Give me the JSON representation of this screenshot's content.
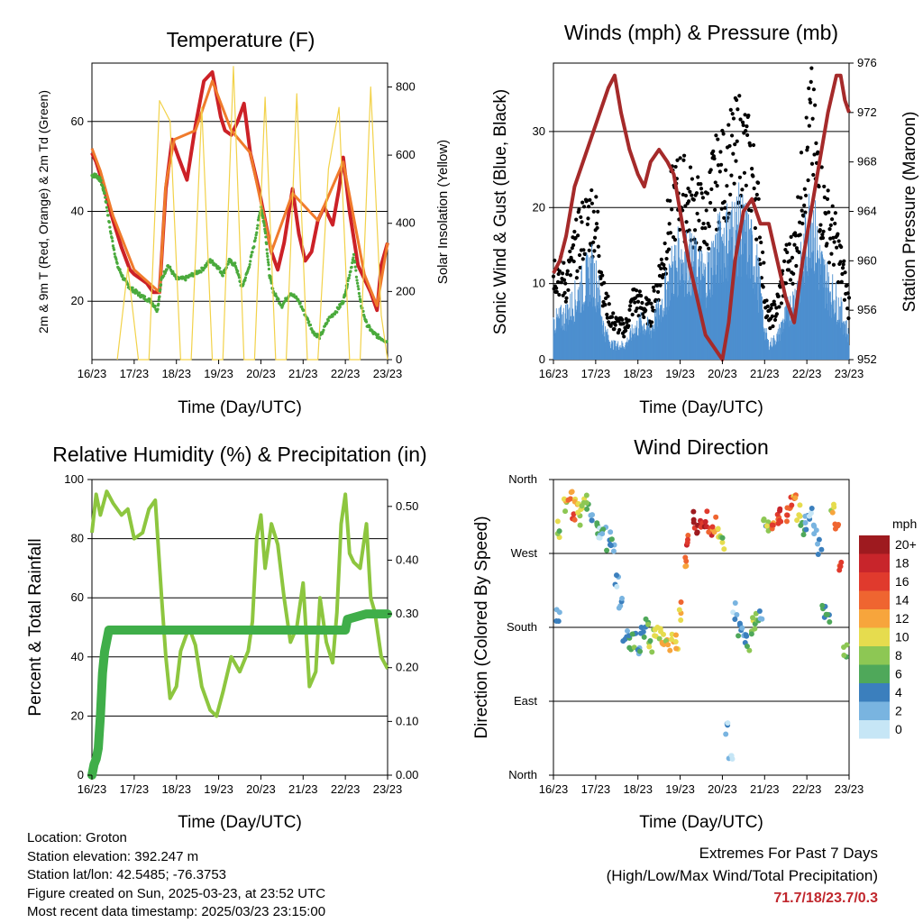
{
  "panels": {
    "temperature": {
      "title": "Temperature (F)",
      "ylabel": "2m & 9m T (Red, Orange) & 2m Td (Green)",
      "y2label": "Solar Insolation (Yellow)",
      "xlabel": "Time (Day/UTC)"
    },
    "winds": {
      "title": "Winds (mph) & Pressure (mb)",
      "ylabel": "Sonic Wind & Gust (Blue, Black)",
      "y2label": "Station Pressure (Maroon)",
      "xlabel": "Time (Day/UTC)"
    },
    "humidity": {
      "title": "Relative Humidity (%) & Precipitation (in)",
      "ylabel": "Percent & Total Rainfall",
      "xlabel": "Time (Day/UTC)"
    },
    "direction": {
      "title": "Wind Direction",
      "ylabel": "Direction (Colored By Speed)",
      "xlabel": "Time (Day/UTC)",
      "legend_title": "mph",
      "legend_labels": [
        "20+",
        "18",
        "16",
        "14",
        "12",
        "10",
        "8",
        "6",
        "4",
        "2",
        "0"
      ],
      "legend_colors": [
        "#9e1a1f",
        "#c8252b",
        "#e03a2d",
        "#ef6530",
        "#f7a53c",
        "#e6dc4e",
        "#8dc754",
        "#4fa85a",
        "#3b7fbd",
        "#79b4e0",
        "#c6e6f6"
      ]
    }
  },
  "info": {
    "location": "Location: Groton",
    "elevation": "Station elevation: 392.247 m",
    "latlon": "Station lat/lon: 42.5485; -76.3753",
    "created": "Figure created on Sun, 2025-03-23, at 23:52 UTC",
    "recent": "Most recent data timestamp: 2025/03/23 23:15:00"
  },
  "extremes": {
    "line1": "Extremes For Past 7 Days",
    "line2": "(High/Low/Max Wind/Total Precipitation)",
    "values": "71.7/18/23.7/0.3"
  },
  "chart_data": [
    {
      "type": "line",
      "title": "Temperature (F)",
      "xlabel": "Time (Day/UTC)",
      "ylabel": "2m & 9m T (Red, Orange) & 2m Td (Green)",
      "y2label": "Solar Insolation (Yellow)",
      "xticks": [
        "16/23",
        "17/23",
        "18/23",
        "19/23",
        "20/23",
        "21/23",
        "22/23",
        "23/23"
      ],
      "xlim": [
        0,
        7
      ],
      "ylim": [
        7,
        73
      ],
      "yticks": [
        20,
        40,
        60
      ],
      "y2lim": [
        0,
        870
      ],
      "y2ticks": [
        0,
        200,
        400,
        600,
        800
      ],
      "series": [
        {
          "color": "#cc2127",
          "x": [
            0,
            0.1,
            0.2,
            0.35,
            0.5,
            0.7,
            0.9,
            1.0,
            1.15,
            1.3,
            1.45,
            1.6,
            1.75,
            1.9,
            2.05,
            2.25,
            2.45,
            2.65,
            2.85,
            2.95,
            3.05,
            3.15,
            3.3,
            3.45,
            3.6,
            3.75,
            3.95,
            4.1,
            4.25,
            4.4,
            4.55,
            4.75,
            4.9,
            5.05,
            5.2,
            5.35,
            5.5,
            5.7,
            5.85,
            5.95,
            6.1,
            6.3,
            6.45,
            6.6,
            6.75,
            6.85,
            7.0
          ],
          "y": [
            53,
            51,
            48,
            43,
            38,
            32,
            27,
            26,
            25,
            24,
            22,
            22,
            45,
            56,
            52,
            47,
            59,
            69,
            71,
            66,
            61,
            58,
            57,
            60,
            64,
            53,
            45,
            38,
            31,
            27,
            33,
            45,
            35,
            29,
            31,
            38,
            41,
            37,
            45,
            52,
            40,
            28,
            25,
            22,
            18,
            28,
            33
          ]
        },
        {
          "color": "#f07b2c",
          "x": [
            0,
            0.2,
            0.5,
            1.0,
            1.6,
            1.75,
            1.95,
            2.45,
            2.85,
            3.3,
            3.75,
            4.25,
            4.75,
            5.35,
            5.95,
            6.45,
            6.75,
            7.0
          ],
          "y": [
            54,
            49,
            39,
            27,
            22,
            46,
            56,
            58,
            69,
            58,
            53,
            31,
            44,
            38,
            51,
            26,
            19,
            33
          ]
        },
        {
          "color": "#4aaa3c",
          "x": [
            0,
            0.1,
            0.2,
            0.3,
            0.45,
            0.6,
            0.75,
            0.9,
            1.05,
            1.2,
            1.4,
            1.55,
            1.65,
            1.8,
            2.0,
            2.2,
            2.4,
            2.6,
            2.8,
            2.95,
            3.1,
            3.25,
            3.4,
            3.55,
            3.7,
            3.85,
            4.0,
            4.1,
            4.2,
            4.3,
            4.5,
            4.7,
            4.9,
            5.1,
            5.25,
            5.4,
            5.6,
            5.8,
            5.95,
            6.05,
            6.2,
            6.35,
            6.5,
            6.65,
            6.8,
            7.0
          ],
          "y": [
            48,
            48,
            47,
            44,
            35,
            28,
            25,
            23,
            22,
            21,
            20,
            18,
            25,
            28,
            25,
            25,
            26,
            27,
            29,
            28,
            26,
            29,
            28,
            23,
            27,
            33,
            41,
            36,
            26,
            22,
            19,
            22,
            20,
            16,
            13,
            12,
            16,
            18,
            20,
            24,
            30,
            20,
            15,
            13,
            12,
            11
          ]
        },
        {
          "axis": "y2",
          "color": "#f2d24a",
          "x": [
            0.6,
            0.85,
            1.1,
            1.35,
            1.6,
            1.85,
            2.1,
            2.35,
            2.6,
            2.85,
            3.1,
            3.35,
            3.6,
            3.85,
            4.1,
            4.35,
            4.6,
            4.85,
            5.1,
            5.35,
            5.6,
            5.85,
            6.1,
            6.35,
            6.6,
            6.85,
            7.0
          ],
          "y": [
            0,
            270,
            0,
            0,
            760,
            700,
            0,
            0,
            740,
            0,
            0,
            860,
            0,
            0,
            770,
            0,
            0,
            780,
            0,
            0,
            560,
            740,
            0,
            0,
            800,
            130,
            0
          ]
        }
      ]
    },
    {
      "type": "scatter",
      "title": "Winds (mph) & Pressure (mb)",
      "xlabel": "Time (Day/UTC)",
      "ylabel": "Sonic Wind & Gust (Blue, Black)",
      "y2label": "Station Pressure (Maroon)",
      "xticks": [
        "16/23",
        "17/23",
        "18/23",
        "19/23",
        "20/23",
        "21/23",
        "22/23",
        "23/23"
      ],
      "xlim": [
        0,
        7
      ],
      "ylim": [
        0,
        39
      ],
      "yticks": [
        0,
        10,
        20,
        30
      ],
      "y2lim": [
        952,
        976
      ],
      "y2ticks": [
        952,
        956,
        960,
        964,
        968,
        972,
        976
      ],
      "series": [
        {
          "color": "#000000",
          "x": [
            0,
            0.3,
            0.5,
            0.7,
            0.9,
            1.05,
            1.2,
            1.4,
            1.7,
            1.9,
            2.1,
            2.3,
            2.6,
            2.8,
            3.0,
            3.3,
            3.6,
            3.8,
            4.0,
            4.2,
            4.4,
            4.6,
            4.8,
            5.0,
            5.1,
            5.3,
            5.5,
            5.7,
            5.9,
            6.1,
            6.3,
            6.5,
            6.7,
            6.9,
            7.0
          ],
          "y": [
            12,
            10,
            14,
            17,
            19,
            17,
            8,
            5,
            4,
            8,
            7,
            6,
            13,
            20,
            22,
            20,
            18,
            23,
            24,
            26,
            28,
            26,
            22,
            9,
            5,
            7,
            12,
            14,
            23,
            31,
            22,
            18,
            15,
            10,
            7
          ]
        },
        {
          "color": "#4d8fcf",
          "x": [
            0,
            0.3,
            0.5,
            0.7,
            0.9,
            1.05,
            1.2,
            1.4,
            1.7,
            1.9,
            2.1,
            2.3,
            2.6,
            2.8,
            3.0,
            3.3,
            3.6,
            3.8,
            4.0,
            4.2,
            4.4,
            4.6,
            4.8,
            5.0,
            5.1,
            5.3,
            5.5,
            5.7,
            5.9,
            6.1,
            6.3,
            6.5,
            6.7,
            6.9,
            7.0
          ],
          "y": [
            5,
            6,
            8,
            10,
            12,
            10,
            4,
            2,
            2,
            4,
            5,
            4,
            8,
            12,
            14,
            13,
            11,
            14,
            16,
            17,
            18,
            16,
            13,
            4,
            2,
            3,
            6,
            8,
            13,
            20,
            13,
            10,
            8,
            5,
            3
          ]
        },
        {
          "axis": "y2",
          "color": "#a52a2a",
          "x": [
            0,
            0.15,
            0.3,
            0.5,
            0.7,
            0.9,
            1.1,
            1.3,
            1.45,
            1.6,
            1.8,
            2.0,
            2.15,
            2.3,
            2.5,
            2.7,
            2.85,
            3.0,
            3.2,
            3.4,
            3.6,
            3.8,
            4.0,
            4.15,
            4.3,
            4.5,
            4.7,
            4.9,
            5.1,
            5.3,
            5.5,
            5.7,
            5.9,
            6.1,
            6.3,
            6.5,
            6.7,
            6.8,
            6.9,
            7.0
          ],
          "y": [
            959,
            960,
            962,
            966,
            968,
            970,
            972,
            974,
            975,
            972,
            969,
            967,
            966,
            968,
            969,
            968,
            967,
            964,
            960,
            957,
            954,
            953,
            952,
            955,
            960,
            964,
            965,
            963,
            963,
            960,
            957,
            955,
            960,
            964,
            968,
            972,
            975,
            975,
            973,
            972
          ]
        }
      ]
    },
    {
      "type": "line",
      "title": "Relative Humidity (%) & Precipitation (in)",
      "xlabel": "Time (Day/UTC)",
      "ylabel": "Percent & Total Rainfall",
      "xticks": [
        "16/23",
        "17/23",
        "18/23",
        "19/23",
        "20/23",
        "21/23",
        "22/23",
        "23/23"
      ],
      "xlim": [
        0,
        7
      ],
      "ylim": [
        0,
        100
      ],
      "yticks": [
        0,
        20,
        40,
        60,
        80,
        100
      ],
      "y2lim": [
        0,
        0.55
      ],
      "y2ticks": [
        0.0,
        0.1,
        0.2,
        0.3,
        0.4,
        0.5
      ],
      "series": [
        {
          "color": "#8dc63f",
          "x": [
            0,
            0.1,
            0.2,
            0.35,
            0.5,
            0.7,
            0.85,
            1.0,
            1.2,
            1.35,
            1.5,
            1.65,
            1.75,
            1.85,
            2.0,
            2.1,
            2.3,
            2.45,
            2.6,
            2.8,
            2.95,
            3.1,
            3.3,
            3.5,
            3.7,
            3.8,
            3.9,
            4.0,
            4.1,
            4.25,
            4.4,
            4.55,
            4.7,
            4.85,
            5.0,
            5.15,
            5.3,
            5.4,
            5.55,
            5.7,
            5.8,
            5.9,
            6.0,
            6.1,
            6.2,
            6.35,
            6.5,
            6.6,
            6.7,
            6.85,
            7.0
          ],
          "y": [
            82,
            95,
            88,
            96,
            92,
            88,
            90,
            80,
            82,
            90,
            93,
            60,
            40,
            26,
            30,
            42,
            50,
            44,
            30,
            22,
            20,
            28,
            40,
            35,
            42,
            52,
            80,
            88,
            70,
            85,
            78,
            60,
            45,
            50,
            65,
            30,
            35,
            60,
            45,
            38,
            55,
            85,
            95,
            75,
            72,
            70,
            85,
            60,
            55,
            40,
            36
          ]
        },
        {
          "axis": "y2",
          "color": "#3fae49",
          "x": [
            0,
            0.05,
            0.1,
            0.15,
            0.2,
            0.25,
            0.3,
            0.4,
            6.0,
            6.05,
            6.5,
            7.0
          ],
          "y": [
            0.0,
            0.02,
            0.03,
            0.05,
            0.11,
            0.19,
            0.23,
            0.27,
            0.27,
            0.29,
            0.3,
            0.3
          ]
        }
      ]
    },
    {
      "type": "scatter",
      "title": "Wind Direction",
      "xlabel": "Time (Day/UTC)",
      "ylabel": "Direction (Colored By Speed)",
      "xticks": [
        "16/23",
        "17/23",
        "18/23",
        "19/23",
        "20/23",
        "21/23",
        "22/23",
        "23/23"
      ],
      "xlim": [
        0,
        7
      ],
      "ylim": [
        0,
        360
      ],
      "yticks": [
        "North",
        "East",
        "South",
        "West",
        "North"
      ],
      "legend": {
        "title": "mph",
        "labels": [
          "20+",
          "18",
          "16",
          "14",
          "12",
          "10",
          "8",
          "6",
          "4",
          "2",
          "0"
        ]
      },
      "series": [
        {
          "x": [
            0.1,
            0.15,
            0.3,
            0.4,
            0.5,
            0.55,
            0.6,
            0.7,
            0.8,
            0.9,
            1.0,
            1.1,
            1.2,
            1.3,
            1.4,
            1.5,
            1.6,
            1.7,
            1.8,
            1.9,
            2.0,
            2.1,
            2.2,
            2.3,
            2.4,
            2.5,
            2.6,
            2.7,
            2.8,
            2.9,
            3.0,
            3.1,
            3.2,
            3.3,
            3.4,
            3.5,
            3.6,
            3.7,
            3.8,
            3.9,
            4.0,
            4.1,
            4.2,
            4.3,
            4.4,
            4.5,
            4.6,
            4.7,
            4.8,
            4.9,
            5.0,
            5.1,
            5.2,
            5.3,
            5.4,
            5.5,
            5.6,
            5.7,
            5.8,
            5.9,
            6.0,
            6.1,
            6.2,
            6.3,
            6.4,
            6.5,
            6.6,
            6.7,
            6.8,
            6.9
          ],
          "y": [
            190,
            300,
            330,
            340,
            320,
            330,
            315,
            325,
            330,
            320,
            305,
            300,
            290,
            285,
            280,
            240,
            210,
            175,
            160,
            165,
            155,
            170,
            180,
            160,
            175,
            170,
            160,
            165,
            160,
            160,
            200,
            260,
            290,
            310,
            305,
            300,
            310,
            300,
            305,
            300,
            280,
            60,
            20,
            200,
            180,
            170,
            160,
            180,
            190,
            200,
            300,
            305,
            300,
            310,
            320,
            315,
            330,
            340,
            320,
            300,
            310,
            320,
            300,
            280,
            200,
            190,
            330,
            300,
            250,
            150
          ],
          "speeds": [
            4,
            8,
            10,
            12,
            14,
            12,
            10,
            8,
            6,
            4,
            4,
            2,
            4,
            4,
            4,
            2,
            2,
            4,
            6,
            6,
            4,
            4,
            6,
            8,
            10,
            10,
            12,
            10,
            12,
            10,
            12,
            14,
            16,
            18,
            20,
            18,
            18,
            16,
            14,
            10,
            8,
            2,
            2,
            2,
            4,
            4,
            6,
            8,
            6,
            4,
            6,
            10,
            14,
            16,
            18,
            16,
            14,
            12,
            10,
            6,
            4,
            2,
            2,
            4,
            4,
            6,
            10,
            14,
            16,
            8
          ]
        }
      ]
    }
  ]
}
